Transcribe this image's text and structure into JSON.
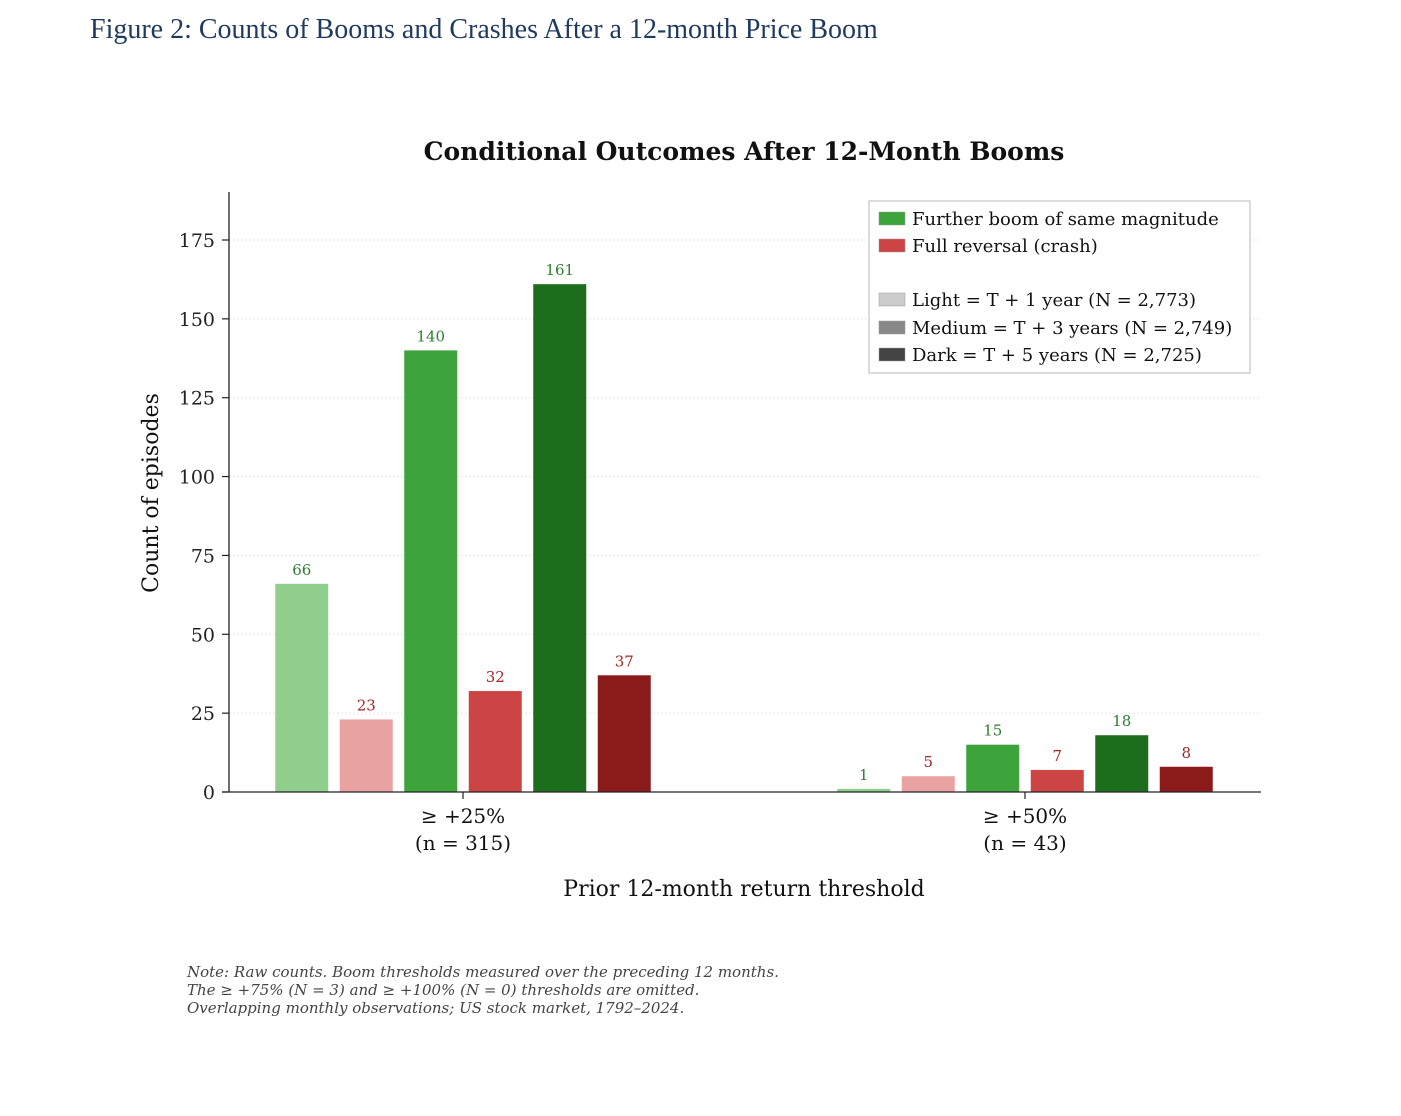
{
  "caption": "Figure 2: Counts of Booms and Crashes After a 12-month Price Boom",
  "chart_data": {
    "type": "bar",
    "title": "Conditional Outcomes After 12-Month Booms",
    "xlabel": "Prior 12-month return threshold",
    "ylabel": "Count of episodes",
    "ylim": [
      0,
      190
    ],
    "yticks": [
      0,
      25,
      50,
      75,
      100,
      125,
      150,
      175
    ],
    "grid": true,
    "categories": [
      {
        "line1": "≥ +25%",
        "line2": "(n = 315)"
      },
      {
        "line1": "≥ +50%",
        "line2": "(n = 43)"
      }
    ],
    "series": [
      {
        "key": "boom_1y",
        "outcome": "boom",
        "horizon": "light",
        "color": "#8fce8c",
        "label_color": "#2e7d2e",
        "values": [
          66,
          1
        ]
      },
      {
        "key": "crash_1y",
        "outcome": "crash",
        "horizon": "light",
        "color": "#e8a2a2",
        "label_color": "#a02828",
        "values": [
          23,
          5
        ]
      },
      {
        "key": "boom_3y",
        "outcome": "boom",
        "horizon": "medium",
        "color": "#3da33b",
        "label_color": "#2e7d2e",
        "values": [
          140,
          15
        ]
      },
      {
        "key": "crash_3y",
        "outcome": "crash",
        "horizon": "medium",
        "color": "#cc4444",
        "label_color": "#a02828",
        "values": [
          32,
          7
        ]
      },
      {
        "key": "boom_5y",
        "outcome": "boom",
        "horizon": "dark",
        "color": "#1c6e1c",
        "label_color": "#2e7d2e",
        "values": [
          161,
          18
        ]
      },
      {
        "key": "crash_5y",
        "outcome": "crash",
        "horizon": "dark",
        "color": "#8b1a1a",
        "label_color": "#a02828",
        "values": [
          37,
          8
        ]
      }
    ],
    "legend": {
      "placement": "top-right",
      "entries": [
        {
          "label": "Further boom of same magnitude",
          "color": "#3da33b"
        },
        {
          "label": "Full reversal (crash)",
          "color": "#cc4444"
        },
        {
          "label": "",
          "color": null
        },
        {
          "label": "Light = T + 1 year (N = 2,773)",
          "color": "#cccccc"
        },
        {
          "label": "Medium = T + 3 years (N = 2,749)",
          "color": "#888888"
        },
        {
          "label": "Dark = T + 5 years (N = 2,725)",
          "color": "#444444"
        }
      ]
    },
    "note": [
      "Note: Raw counts. Boom thresholds measured over the preceding 12 months.",
      "The ≥ +75% (N = 3) and ≥ +100% (N = 0) thresholds are omitted.",
      "Overlapping monthly observations; US stock market, 1792–2024."
    ]
  }
}
